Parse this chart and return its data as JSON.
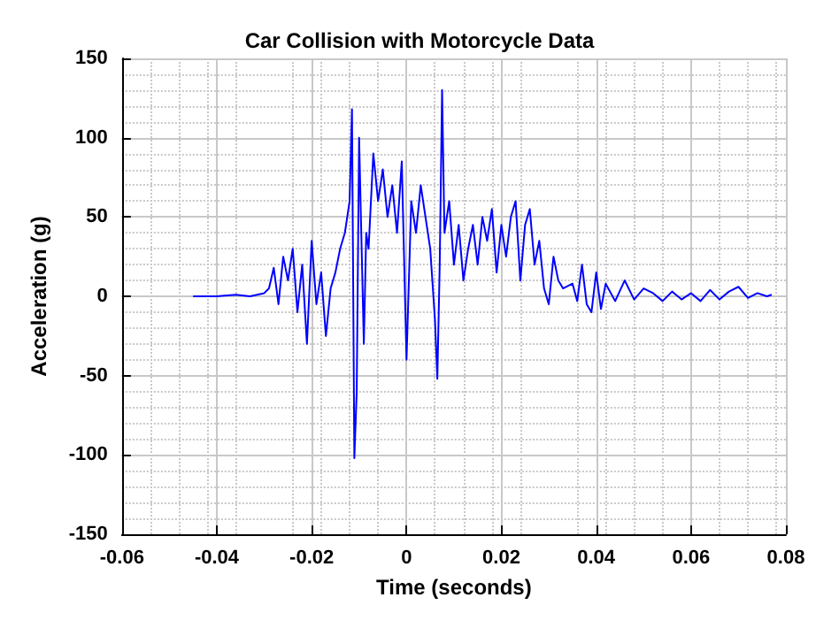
{
  "chart_data": {
    "type": "line",
    "title": "Car Collision with Motorcycle Data",
    "xlabel": "Time (seconds)",
    "ylabel": "Acceleration (g)",
    "xlim": [
      -0.06,
      0.08
    ],
    "xticks": [
      -0.06,
      -0.04,
      -0.02,
      0,
      0.02,
      0.04,
      0.06,
      0.08
    ],
    "ylim": [
      -150,
      150
    ],
    "yticks": [
      -150,
      -100,
      -50,
      0,
      50,
      100,
      150
    ],
    "grid": true,
    "marker": "none",
    "line_style": "solid",
    "series": [
      {
        "color": "#0000ff",
        "x": [
          -0.045,
          -0.04,
          -0.036,
          -0.033,
          -0.03,
          -0.029,
          -0.028,
          -0.027,
          -0.026,
          -0.025,
          -0.024,
          -0.023,
          -0.022,
          -0.021,
          -0.02,
          -0.019,
          -0.018,
          -0.017,
          -0.016,
          -0.015,
          -0.014,
          -0.013,
          -0.012,
          -0.0115,
          -0.011,
          -0.0105,
          -0.01,
          -0.009,
          -0.0085,
          -0.008,
          -0.007,
          -0.006,
          -0.005,
          -0.004,
          -0.003,
          -0.002,
          -0.001,
          0,
          0.001,
          0.002,
          0.003,
          0.004,
          0.005,
          0.006,
          0.0065,
          0.007,
          0.0075,
          0.008,
          0.009,
          0.01,
          0.011,
          0.012,
          0.013,
          0.014,
          0.015,
          0.016,
          0.017,
          0.018,
          0.019,
          0.02,
          0.021,
          0.022,
          0.023,
          0.024,
          0.025,
          0.026,
          0.027,
          0.028,
          0.029,
          0.03,
          0.031,
          0.032,
          0.033,
          0.035,
          0.036,
          0.037,
          0.038,
          0.039,
          0.04,
          0.041,
          0.042,
          0.044,
          0.046,
          0.048,
          0.05,
          0.052,
          0.054,
          0.056,
          0.058,
          0.06,
          0.062,
          0.064,
          0.066,
          0.068,
          0.07,
          0.072,
          0.074,
          0.076,
          0.077
        ],
        "values": [
          0,
          0,
          1,
          0,
          2,
          5,
          18,
          -5,
          25,
          10,
          30,
          -10,
          20,
          -30,
          35,
          -5,
          15,
          -25,
          5,
          15,
          30,
          40,
          60,
          118,
          -102,
          -60,
          100,
          -30,
          40,
          30,
          90,
          60,
          80,
          50,
          70,
          40,
          85,
          -40,
          60,
          40,
          70,
          50,
          30,
          -15,
          -52,
          20,
          130,
          40,
          60,
          20,
          45,
          10,
          30,
          45,
          20,
          50,
          35,
          55,
          15,
          45,
          25,
          50,
          60,
          10,
          45,
          55,
          20,
          35,
          5,
          -5,
          25,
          10,
          5,
          8,
          -3,
          20,
          -5,
          -10,
          15,
          -8,
          8,
          -3,
          10,
          -2,
          5,
          2,
          -3,
          3,
          -2,
          2,
          -3,
          4,
          -2,
          3,
          6,
          -1,
          2,
          0,
          1
        ]
      }
    ]
  }
}
